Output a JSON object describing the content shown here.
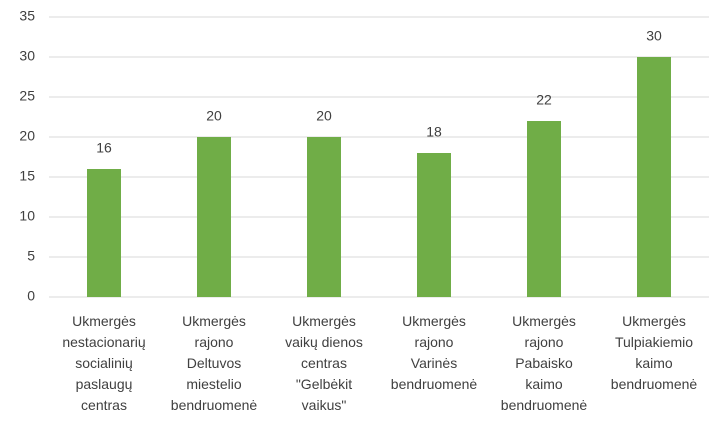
{
  "chart_data": {
    "type": "bar",
    "categories": [
      "Ukmergės\nnestacionarių\nsocialinių\npaslaugų\ncentras",
      "Ukmergės\nrajono\nDeltuvos\nmiestelio\nbendruomenė",
      "Ukmergės\nvaikų dienos\ncentras\n\"Gelbėkit\nvaikus\"",
      "Ukmergės\nrajono\nVarinės\nbendruomenė",
      "Ukmergės\nrajono\nPabaisko\nkaimo\nbendruomenė",
      "Ukmergės\nTulpiakiemio\nkaimo\nbendruomenė"
    ],
    "values": [
      16,
      20,
      20,
      18,
      22,
      30
    ],
    "color": "#70ad47",
    "ylim": [
      0,
      35
    ],
    "yticks": [
      0,
      5,
      10,
      15,
      20,
      25,
      30,
      35
    ],
    "grid": true
  }
}
